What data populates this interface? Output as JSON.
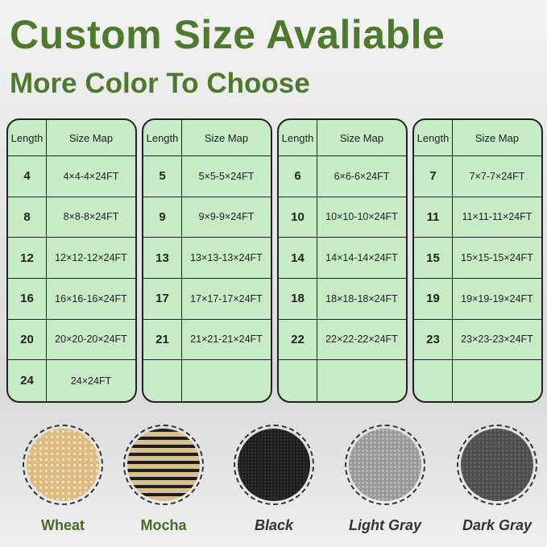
{
  "title": "Custom Size Avaliable",
  "subtitle": "More Color To Choose",
  "headers": {
    "length": "Length",
    "size_map": "Size Map"
  },
  "tables": [
    {
      "rows": [
        [
          "4",
          "4×4-4×24FT"
        ],
        [
          "8",
          "8×8-8×24FT"
        ],
        [
          "12",
          "12×12-12×24FT"
        ],
        [
          "16",
          "16×16-16×24FT"
        ],
        [
          "20",
          "20×20-20×24FT"
        ],
        [
          "24",
          "24×24FT"
        ]
      ]
    },
    {
      "rows": [
        [
          "5",
          "5×5-5×24FT"
        ],
        [
          "9",
          "9×9-9×24FT"
        ],
        [
          "13",
          "13×13-13×24FT"
        ],
        [
          "17",
          "17×17-17×24FT"
        ],
        [
          "21",
          "21×21-21×24FT"
        ],
        [
          "",
          ""
        ]
      ]
    },
    {
      "rows": [
        [
          "6",
          "6×6-6×24FT"
        ],
        [
          "10",
          "10×10-10×24FT"
        ],
        [
          "14",
          "14×14-14×24FT"
        ],
        [
          "18",
          "18×18-18×24FT"
        ],
        [
          "22",
          "22×22-22×24FT"
        ],
        [
          "",
          ""
        ]
      ]
    },
    {
      "rows": [
        [
          "7",
          "7×7-7×24FT"
        ],
        [
          "11",
          "11×11-11×24FT"
        ],
        [
          "15",
          "15×15-15×24FT"
        ],
        [
          "19",
          "19×19-19×24FT"
        ],
        [
          "23",
          "23×23-23×24FT"
        ],
        [
          "",
          ""
        ]
      ]
    }
  ],
  "colors": [
    {
      "name": "Wheat",
      "swatch": "#e2c68e",
      "italic": false
    },
    {
      "name": "Mocha",
      "swatch": "#c9aa78",
      "italic": false
    },
    {
      "name": "Black",
      "swatch": "#2a2a2a",
      "italic": true
    },
    {
      "name": "Light Gray",
      "swatch": "#a6a6a6",
      "italic": true
    },
    {
      "name": "Dark Gray",
      "swatch": "#5a5a5a",
      "italic": true
    }
  ]
}
